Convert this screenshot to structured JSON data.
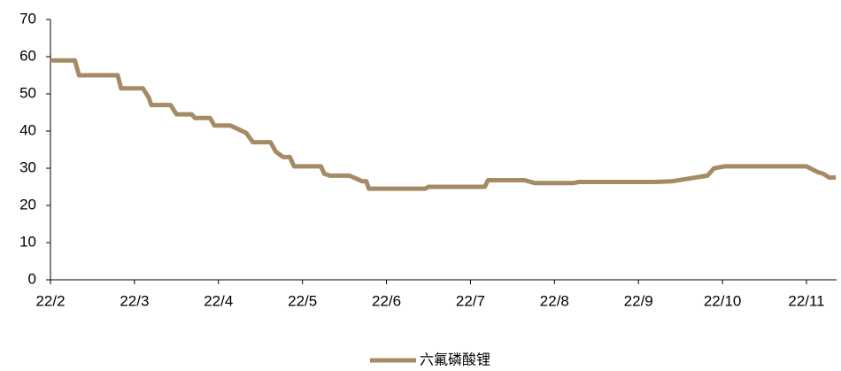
{
  "chart_data": {
    "type": "line",
    "x": [
      2,
      2.29,
      2.34,
      2.8,
      2.84,
      3.1,
      3.17,
      3.2,
      3.43,
      3.5,
      3.68,
      3.72,
      3.9,
      3.95,
      4.14,
      4.33,
      4.41,
      4.62,
      4.68,
      4.77,
      4.85,
      4.9,
      5.22,
      5.26,
      5.33,
      5.56,
      5.71,
      5.76,
      5.79,
      6.46,
      6.5,
      7.17,
      7.21,
      7.64,
      7.77,
      8.22,
      8.29,
      9.19,
      9.4,
      9.82,
      9.9,
      10.03,
      11.0,
      11.13,
      11.2,
      11.27,
      11.35
    ],
    "series": [
      {
        "name": "六氟磷酸锂",
        "color": "#a58b64",
        "values": [
          59,
          59,
          55,
          55,
          51.5,
          51.5,
          49,
          47,
          47,
          44.5,
          44.5,
          43.5,
          43.5,
          41.5,
          41.5,
          39.5,
          37,
          37,
          34.5,
          33,
          33,
          30.5,
          30.5,
          28.5,
          28,
          28,
          26.5,
          26.5,
          24.5,
          24.5,
          25,
          25,
          26.8,
          26.8,
          26,
          26,
          26.3,
          26.3,
          26.5,
          28,
          30,
          30.5,
          30.5,
          29,
          28.5,
          27.5,
          27.5
        ]
      }
    ],
    "xlim": [
      2,
      11.36
    ],
    "xticks": [
      {
        "value": 2,
        "label": "22/2"
      },
      {
        "value": 3,
        "label": "22/3"
      },
      {
        "value": 4,
        "label": "22/4"
      },
      {
        "value": 5,
        "label": "22/5"
      },
      {
        "value": 6,
        "label": "22/6"
      },
      {
        "value": 7,
        "label": "22/7"
      },
      {
        "value": 8,
        "label": "22/8"
      },
      {
        "value": 9,
        "label": "22/9"
      },
      {
        "value": 10,
        "label": "22/10"
      },
      {
        "value": 11,
        "label": "22/11"
      }
    ],
    "ylim": [
      0,
      70
    ],
    "yticks": [
      0,
      10,
      20,
      30,
      40,
      50,
      60,
      70
    ],
    "legend": "bottom"
  }
}
